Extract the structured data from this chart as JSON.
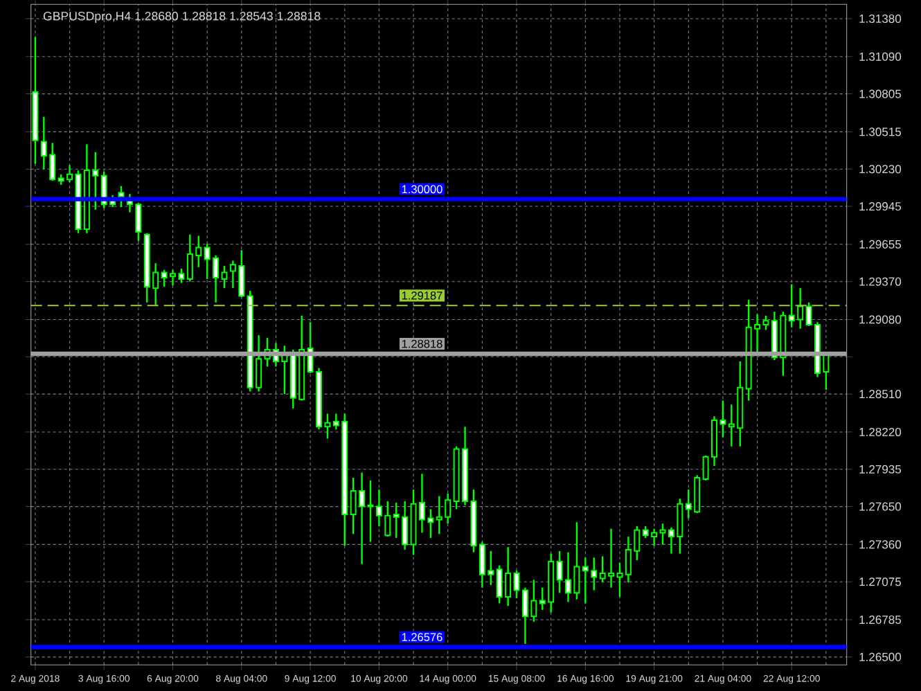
{
  "chart_data": {
    "type": "candlestick",
    "title": "GBPUSDpro,H4  1.28680 1.28818 1.28543 1.28818",
    "color": "#00ff00",
    "categories": [
      "2 Aug 2018",
      null,
      null,
      null,
      null,
      null,
      null,
      null,
      "3 Aug 16:00",
      null,
      null,
      null,
      null,
      null,
      null,
      null,
      "6 Aug 20:00",
      null,
      null,
      null,
      null,
      null,
      null,
      null,
      "8 Aug 04:00",
      null,
      null,
      null,
      null,
      null,
      null,
      null,
      "9 Aug 12:00",
      null,
      null,
      null,
      null,
      null,
      null,
      null,
      "10 Aug 20:00",
      null,
      null,
      null,
      null,
      null,
      null,
      null,
      "14 Aug 00:00",
      null,
      null,
      null,
      null,
      null,
      null,
      null,
      "15 Aug 08:00",
      null,
      null,
      null,
      null,
      null,
      null,
      null,
      "16 Aug 16:00",
      null,
      null,
      null,
      null,
      null,
      null,
      null,
      "19 Aug 21:00",
      null,
      null,
      null,
      null,
      null,
      null,
      null,
      "21 Aug 04:00",
      null,
      null,
      null,
      null,
      null,
      null,
      null,
      "22 Aug 12:00",
      null,
      null,
      null,
      null
    ],
    "ohlc": [
      [
        1.3082,
        1.3124,
        1.3027,
        1.3045
      ],
      [
        1.3044,
        1.3063,
        1.3023,
        1.3033
      ],
      [
        1.3034,
        1.3043,
        1.3014,
        1.3015
      ],
      [
        1.3016,
        1.3019,
        1.3011,
        1.3014
      ],
      [
        1.3015,
        1.3026,
        1.3013,
        1.3019
      ],
      [
        1.3019,
        1.3022,
        1.2974,
        1.2977
      ],
      [
        1.2977,
        1.3042,
        1.2974,
        1.3022
      ],
      [
        1.3022,
        1.3036,
        1.2992,
        1.3018
      ],
      [
        1.3018,
        1.3021,
        1.2993,
        1.2996
      ],
      [
        1.3,
        1.3003,
        1.2994,
        1.2996
      ],
      [
        1.3005,
        1.301,
        1.2994,
        1.3002
      ],
      [
        1.3001,
        1.3004,
        1.299,
        1.2996
      ],
      [
        1.2996,
        1.2997,
        1.2968,
        1.2975
      ],
      [
        1.2973,
        1.2974,
        1.2921,
        1.2933
      ],
      [
        1.2932,
        1.2951,
        1.2919,
        1.2944
      ],
      [
        1.2944,
        1.2946,
        1.2933,
        1.294
      ],
      [
        1.2941,
        1.2946,
        1.2934,
        1.2943
      ],
      [
        1.2943,
        1.2947,
        1.2936,
        1.2939
      ],
      [
        1.2939,
        1.2973,
        1.2937,
        1.2958
      ],
      [
        1.2957,
        1.2972,
        1.2948,
        1.2963
      ],
      [
        1.2963,
        1.2966,
        1.2939,
        1.2954
      ],
      [
        1.2955,
        1.2957,
        1.2921,
        1.294
      ],
      [
        1.2939,
        1.2949,
        1.2932,
        1.2944
      ],
      [
        1.2945,
        1.2953,
        1.2932,
        1.295
      ],
      [
        1.2949,
        1.2961,
        1.2925,
        1.2926
      ],
      [
        1.2926,
        1.293,
        1.2853,
        1.2856
      ],
      [
        1.2856,
        1.2896,
        1.2853,
        1.2878
      ],
      [
        1.2878,
        1.2894,
        1.2872,
        1.2885
      ],
      [
        1.2885,
        1.289,
        1.2872,
        1.2876
      ],
      [
        1.2876,
        1.2888,
        1.2851,
        1.2881
      ],
      [
        1.2881,
        1.2885,
        1.284,
        1.2848
      ],
      [
        1.2847,
        1.2911,
        1.2846,
        1.2885
      ],
      [
        1.2886,
        1.2906,
        1.2867,
        1.2868
      ],
      [
        1.2868,
        1.2871,
        1.2824,
        1.2826
      ],
      [
        1.2826,
        1.2836,
        1.2817,
        1.2829
      ],
      [
        1.283,
        1.2836,
        1.2824,
        1.2827
      ],
      [
        1.283,
        1.2836,
        1.2735,
        1.2759
      ],
      [
        1.2759,
        1.2787,
        1.2744,
        1.2777
      ],
      [
        1.2777,
        1.2791,
        1.2721,
        1.2765
      ],
      [
        1.2766,
        1.2785,
        1.2738,
        1.2765
      ],
      [
        1.2765,
        1.2778,
        1.275,
        1.2758
      ],
      [
        1.2743,
        1.2769,
        1.2742,
        1.2758
      ],
      [
        1.2759,
        1.2768,
        1.2741,
        1.2757
      ],
      [
        1.2757,
        1.2769,
        1.2732,
        1.2736
      ],
      [
        1.2736,
        1.2778,
        1.2728,
        1.2767
      ],
      [
        1.2768,
        1.279,
        1.2745,
        1.2755
      ],
      [
        1.2756,
        1.2763,
        1.2741,
        1.2753
      ],
      [
        1.2755,
        1.2773,
        1.2744,
        1.2757
      ],
      [
        1.2757,
        1.2775,
        1.2752,
        1.277
      ],
      [
        1.2769,
        1.2811,
        1.2763,
        1.2809
      ],
      [
        1.2809,
        1.2826,
        1.2766,
        1.2769
      ],
      [
        1.2769,
        1.2778,
        1.273,
        1.2735
      ],
      [
        1.2736,
        1.2738,
        1.2703,
        1.2713
      ],
      [
        1.2716,
        1.2731,
        1.2705,
        1.2713
      ],
      [
        1.2717,
        1.272,
        1.2691,
        1.2696
      ],
      [
        1.2696,
        1.2734,
        1.2689,
        1.2714
      ],
      [
        1.2714,
        1.2716,
        1.2695,
        1.2701
      ],
      [
        1.2701,
        1.2703,
        1.266,
        1.2681
      ],
      [
        1.2681,
        1.2709,
        1.2677,
        1.2693
      ],
      [
        1.2693,
        1.2703,
        1.2686,
        1.2691
      ],
      [
        1.2692,
        1.2729,
        1.2684,
        1.2723
      ],
      [
        1.2723,
        1.2731,
        1.2699,
        1.2709
      ],
      [
        1.2709,
        1.273,
        1.2692,
        1.2699
      ],
      [
        1.2699,
        1.2753,
        1.2694,
        1.2719
      ],
      [
        1.2719,
        1.2726,
        1.2691,
        1.2716
      ],
      [
        1.2716,
        1.2726,
        1.2701,
        1.2711
      ],
      [
        1.271,
        1.2727,
        1.2707,
        1.2714
      ],
      [
        1.2712,
        1.2748,
        1.2703,
        1.2714
      ],
      [
        1.2711,
        1.2722,
        1.2696,
        1.2714
      ],
      [
        1.2713,
        1.2742,
        1.2707,
        1.2732
      ],
      [
        1.2731,
        1.275,
        1.2724,
        1.2747
      ],
      [
        1.2747,
        1.275,
        1.2741,
        1.2743
      ],
      [
        1.2742,
        1.2748,
        1.2735,
        1.2745
      ],
      [
        1.2745,
        1.2752,
        1.2736,
        1.2747
      ],
      [
        1.2747,
        1.2749,
        1.2729,
        1.2742
      ],
      [
        1.2742,
        1.2771,
        1.2729,
        1.2767
      ],
      [
        1.2767,
        1.2778,
        1.2756,
        1.2763
      ],
      [
        1.2761,
        1.2789,
        1.276,
        1.2787
      ],
      [
        1.2786,
        1.2804,
        1.2785,
        1.2803
      ],
      [
        1.2803,
        1.2834,
        1.2796,
        1.2831
      ],
      [
        1.2831,
        1.2846,
        1.2818,
        1.2828
      ],
      [
        1.2826,
        1.2843,
        1.2811,
        1.2828
      ],
      [
        1.2825,
        1.2876,
        1.2811,
        1.2856
      ],
      [
        1.2855,
        1.2923,
        1.2846,
        1.2902
      ],
      [
        1.2901,
        1.2912,
        1.2881,
        1.2904
      ],
      [
        1.2904,
        1.2911,
        1.29,
        1.2907
      ],
      [
        1.2907,
        1.2914,
        1.2877,
        1.2879
      ],
      [
        1.2879,
        1.2914,
        1.2865,
        1.2911
      ],
      [
        1.2911,
        1.2935,
        1.2902,
        1.2907
      ],
      [
        1.2908,
        1.2932,
        1.2901,
        1.2918
      ],
      [
        1.2918,
        1.2921,
        1.2903,
        1.2904
      ],
      [
        1.2904,
        1.2906,
        1.2864,
        1.2867
      ],
      [
        1.2868,
        1.28818,
        1.28543,
        1.28818
      ]
    ],
    "ylim": [
      1.2644,
      1.3149
    ],
    "yticks": [
      {
        "value": 1.3138,
        "label": "1.31380"
      },
      {
        "value": 1.3109,
        "label": "1.31090"
      },
      {
        "value": 1.30805,
        "label": "1.30805"
      },
      {
        "value": 1.30515,
        "label": "1.30515"
      },
      {
        "value": 1.3023,
        "label": "1.30230"
      },
      {
        "value": 1.29945,
        "label": "1.29945"
      },
      {
        "value": 1.29655,
        "label": "1.29655"
      },
      {
        "value": 1.2937,
        "label": "1.29370"
      },
      {
        "value": 1.2908,
        "label": "1.29080"
      },
      {
        "value": 1.28795,
        "label": null
      },
      {
        "value": 1.2851,
        "label": "1.28510"
      },
      {
        "value": 1.2822,
        "label": "1.28220"
      },
      {
        "value": 1.27935,
        "label": "1.27935"
      },
      {
        "value": 1.2765,
        "label": "1.27650"
      },
      {
        "value": 1.2736,
        "label": "1.27360"
      },
      {
        "value": 1.27075,
        "label": "1.27075"
      },
      {
        "value": 1.26785,
        "label": "1.26785"
      },
      {
        "value": 1.265,
        "label": "1.26500"
      }
    ],
    "grid": true,
    "ref_lines": [
      {
        "axis": "y",
        "value": 1.3,
        "label": "1.30000",
        "color": "#0000ff",
        "line_style": "solid"
      },
      {
        "axis": "y",
        "value": 1.29187,
        "label": "1.29187",
        "color": "#9acd32",
        "line_style": "dashed"
      },
      {
        "axis": "y",
        "value": 1.28818,
        "label": "1.28818",
        "color": "#a0a0a0",
        "line_style": "solid"
      },
      {
        "axis": "y",
        "value": 1.26576,
        "label": "1.26576",
        "color": "#0000ff",
        "line_style": "solid"
      }
    ]
  }
}
